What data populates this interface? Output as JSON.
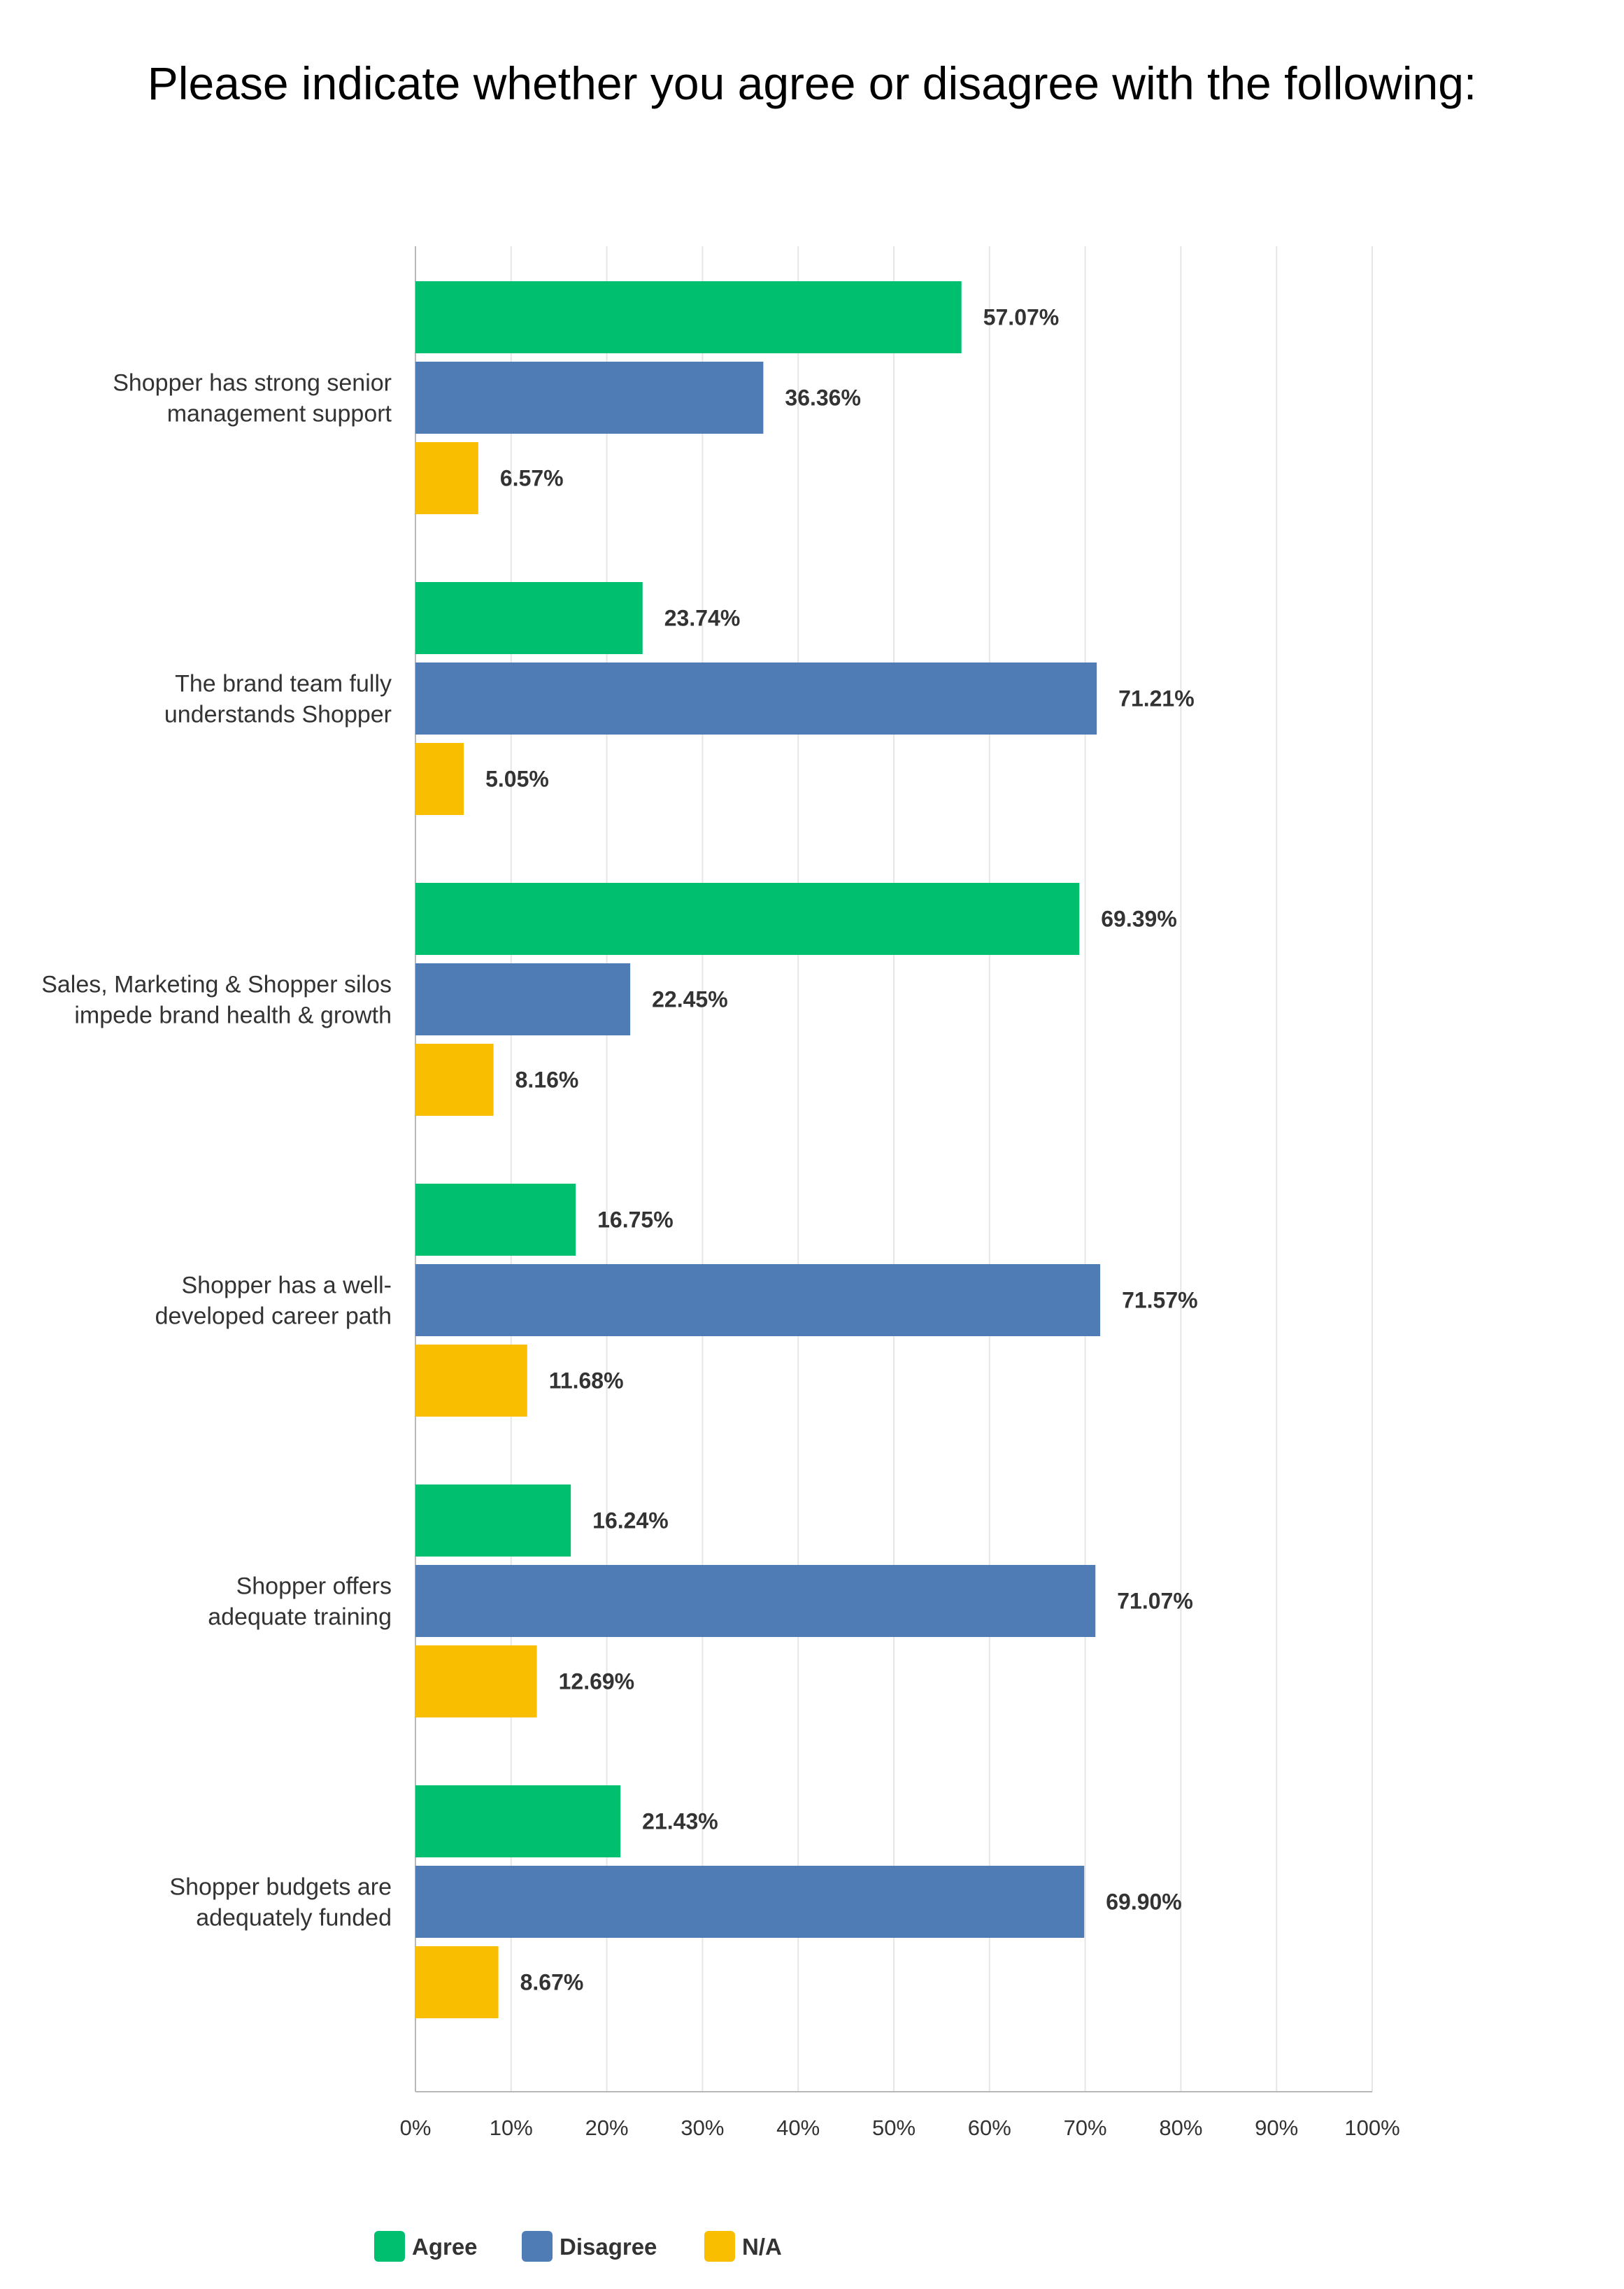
{
  "chart_data": {
    "type": "bar",
    "orientation": "horizontal",
    "title": "Please indicate whether you agree or disagree with the following:",
    "categories": [
      [
        "Shopper has strong senior",
        "management support"
      ],
      [
        "The brand team fully",
        "understands Shopper"
      ],
      [
        "Sales, Marketing & Shopper silos",
        "impede brand health & growth"
      ],
      [
        "Shopper has a well-",
        "developed career path"
      ],
      [
        "Shopper offers",
        "adequate training"
      ],
      [
        "Shopper budgets are",
        "adequately funded"
      ]
    ],
    "series": [
      {
        "name": "Agree",
        "color": "#00bf6f",
        "values": [
          57.07,
          23.74,
          69.39,
          16.75,
          16.24,
          21.43
        ]
      },
      {
        "name": "Disagree",
        "color": "#507cb6",
        "values": [
          36.36,
          71.21,
          22.45,
          71.57,
          71.07,
          69.9
        ]
      },
      {
        "name": "N/A",
        "color": "#f9be00",
        "values": [
          6.57,
          5.05,
          8.16,
          11.68,
          12.69,
          8.67
        ]
      }
    ],
    "xlim": [
      0,
      100
    ],
    "x_ticks": [
      "0%",
      "10%",
      "20%",
      "30%",
      "40%",
      "50%",
      "60%",
      "70%",
      "80%",
      "90%",
      "100%"
    ],
    "value_suffix": "%",
    "grid": true,
    "legend_position": "bottom"
  }
}
